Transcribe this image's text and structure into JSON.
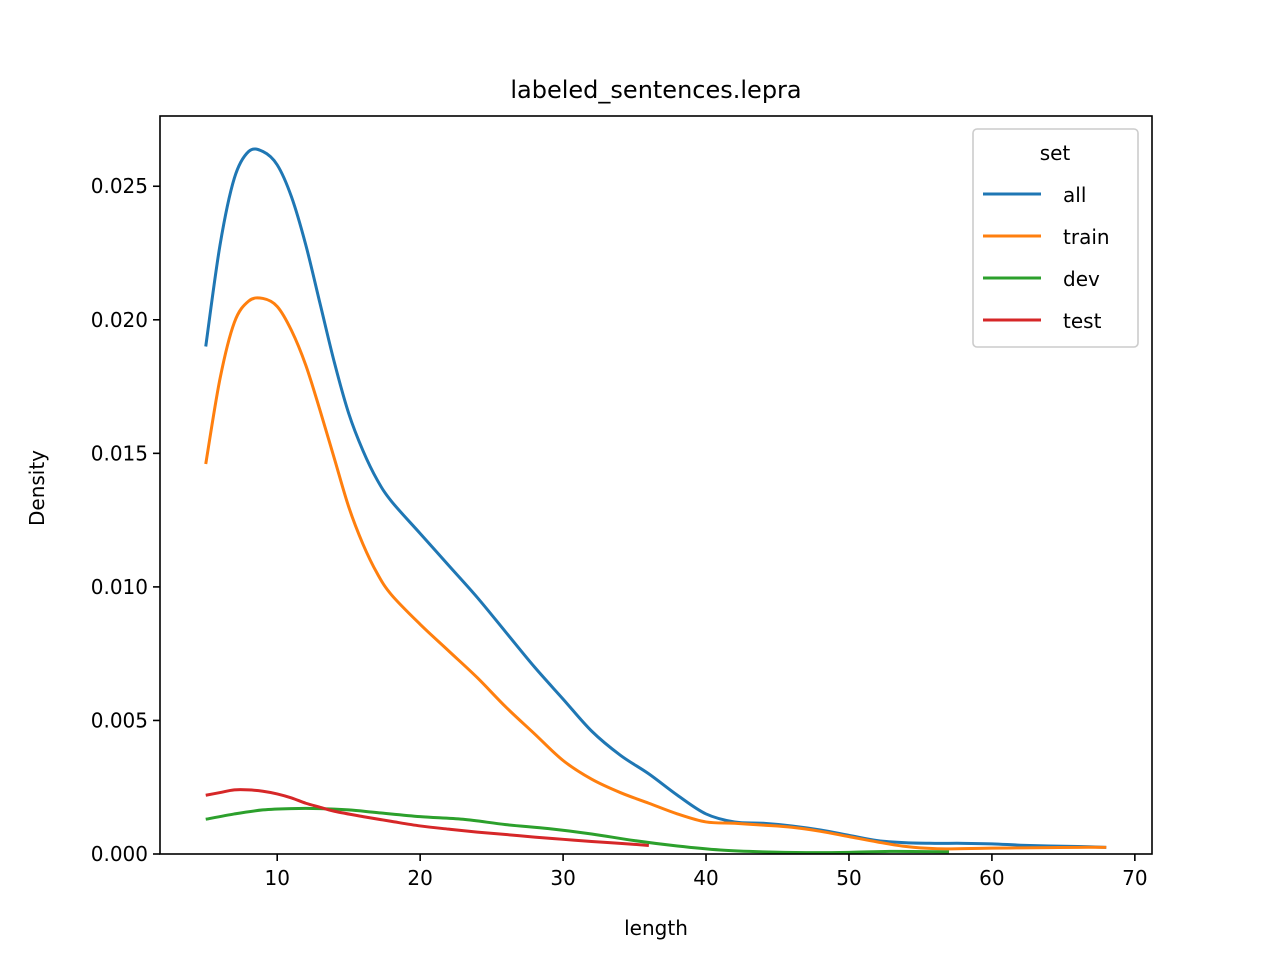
{
  "chart_data": {
    "type": "line",
    "title": "labeled_sentences.lepra",
    "xlabel": "length",
    "ylabel": "Density",
    "xlim": [
      1.8,
      71.2
    ],
    "ylim": [
      0,
      0.02763
    ],
    "xticks": [
      10,
      20,
      30,
      40,
      50,
      60,
      70
    ],
    "xtick_labels": [
      "10",
      "20",
      "30",
      "40",
      "50",
      "60",
      "70"
    ],
    "yticks": [
      0,
      0.005,
      0.01,
      0.015,
      0.02,
      0.025
    ],
    "ytick_labels": [
      "0.000",
      "0.005",
      "0.010",
      "0.015",
      "0.020",
      "0.025"
    ],
    "grid": false,
    "legend": {
      "title": "set",
      "position": "top-right"
    },
    "series": [
      {
        "name": "all",
        "color": "#1f77b4",
        "x": [
          5,
          6,
          7,
          8,
          9,
          10,
          11,
          12,
          13,
          14,
          15,
          16,
          17,
          18,
          20,
          22,
          24,
          26,
          28,
          30,
          32,
          34,
          36,
          38,
          40,
          42,
          44,
          46,
          48,
          50,
          52,
          54,
          56,
          58,
          60,
          62,
          64,
          66,
          68
        ],
        "y": [
          0.019,
          0.0228,
          0.0253,
          0.0263,
          0.0263,
          0.0258,
          0.0246,
          0.0228,
          0.0206,
          0.0184,
          0.0165,
          0.0151,
          0.014,
          0.0132,
          0.012,
          0.0108,
          0.0096,
          0.0083,
          0.007,
          0.0058,
          0.0046,
          0.0037,
          0.003,
          0.0022,
          0.0015,
          0.0012,
          0.00115,
          0.00105,
          0.0009,
          0.0007,
          0.0005,
          0.00042,
          0.0004,
          0.0004,
          0.00038,
          0.00033,
          0.0003,
          0.00028,
          0.00025
        ]
      },
      {
        "name": "train",
        "color": "#ff7f0e",
        "x": [
          5,
          6,
          7,
          8,
          9,
          10,
          11,
          12,
          13,
          14,
          15,
          16,
          17,
          18,
          20,
          22,
          24,
          26,
          28,
          30,
          32,
          34,
          36,
          38,
          40,
          42,
          44,
          46,
          48,
          50,
          52,
          54,
          56,
          58,
          60,
          62,
          64,
          66,
          68
        ],
        "y": [
          0.0146,
          0.0178,
          0.0199,
          0.0207,
          0.0208,
          0.0205,
          0.0196,
          0.0183,
          0.0166,
          0.0148,
          0.013,
          0.0116,
          0.0105,
          0.0097,
          0.0086,
          0.0076,
          0.0066,
          0.0055,
          0.0045,
          0.0035,
          0.0028,
          0.0023,
          0.0019,
          0.0015,
          0.0012,
          0.00115,
          0.00108,
          0.001,
          0.00085,
          0.00065,
          0.00045,
          0.00028,
          0.0002,
          0.0002,
          0.00022,
          0.00023,
          0.00024,
          0.00025,
          0.00025
        ]
      },
      {
        "name": "dev",
        "color": "#2ca02c",
        "x": [
          5,
          7,
          9,
          11,
          13,
          15,
          17,
          20,
          23,
          26,
          29,
          32,
          35,
          38,
          41,
          44,
          47,
          50,
          53,
          57
        ],
        "y": [
          0.0013,
          0.0015,
          0.00165,
          0.0017,
          0.0017,
          0.00165,
          0.00155,
          0.0014,
          0.0013,
          0.0011,
          0.00095,
          0.00075,
          0.0005,
          0.0003,
          0.00015,
          8e-05,
          5e-05,
          6e-05,
          0.0001,
          8e-05
        ]
      },
      {
        "name": "test",
        "color": "#d62728",
        "x": [
          5,
          6,
          7,
          8,
          9,
          10,
          11,
          12,
          13,
          14,
          16,
          18,
          20,
          22,
          24,
          26,
          28,
          30,
          32,
          34,
          36
        ],
        "y": [
          0.0022,
          0.0023,
          0.0024,
          0.0024,
          0.00235,
          0.00225,
          0.0021,
          0.0019,
          0.00175,
          0.0016,
          0.0014,
          0.00122,
          0.00105,
          0.00093,
          0.00082,
          0.00073,
          0.00063,
          0.00055,
          0.00047,
          0.0004,
          0.00032
        ]
      }
    ]
  }
}
